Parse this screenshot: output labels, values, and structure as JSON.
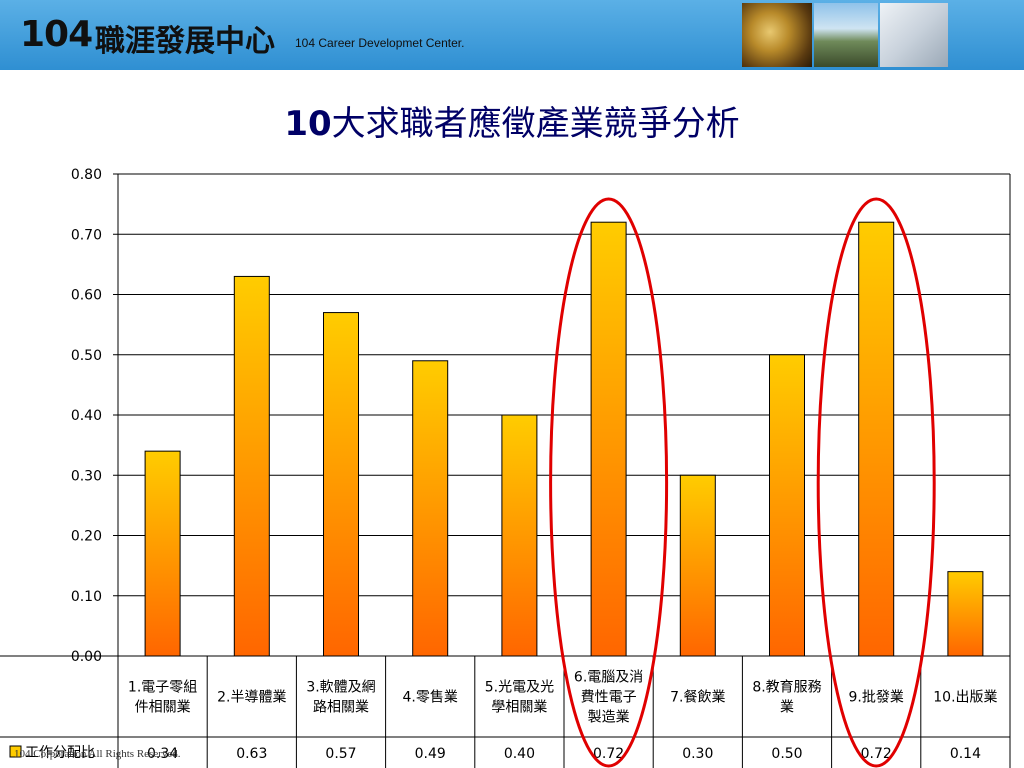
{
  "header": {
    "logo_number": "104",
    "logo_name": "職涯發展中心",
    "logo_english": "104 Career Developmet Center."
  },
  "slide": {
    "title_bold": "10",
    "title_rest": "大求職者應徵產業競爭分析"
  },
  "footer": {
    "copyright": "104 Corporation All Rights Reserved."
  },
  "chart_data": {
    "type": "bar",
    "title": "",
    "xlabel": "",
    "ylabel": "",
    "ylim": [
      0,
      0.8
    ],
    "ytick_labels": [
      "0.00",
      "0.10",
      "0.20",
      "0.30",
      "0.40",
      "0.50",
      "0.60",
      "0.70",
      "0.80"
    ],
    "categories": [
      [
        "1.電子零組",
        "件相關業"
      ],
      [
        "2.半導體業"
      ],
      [
        "3.軟體及網",
        "路相關業"
      ],
      [
        "4.零售業"
      ],
      [
        "5.光電及光",
        "學相關業"
      ],
      [
        "6.電腦及消",
        "費性電子",
        "製造業"
      ],
      [
        "7.餐飲業"
      ],
      [
        "8.教育服務",
        "業"
      ],
      [
        "9.批發業"
      ],
      [
        "10.出版業"
      ]
    ],
    "series": [
      {
        "name": "工作分配比",
        "values": [
          0.34,
          0.63,
          0.57,
          0.49,
          0.4,
          0.72,
          0.3,
          0.5,
          0.72,
          0.14
        ],
        "value_labels": [
          "0.34",
          "0.63",
          "0.57",
          "0.49",
          "0.40",
          "0.72",
          "0.30",
          "0.50",
          "0.72",
          "0.14"
        ]
      }
    ],
    "colors": {
      "bar_top": "#FFCC00",
      "bar_bottom": "#FF6600",
      "highlight": "#E00000"
    },
    "highlighted_categories": [
      5,
      8
    ],
    "grid": true,
    "legend": "bottom-left (in data table)"
  }
}
